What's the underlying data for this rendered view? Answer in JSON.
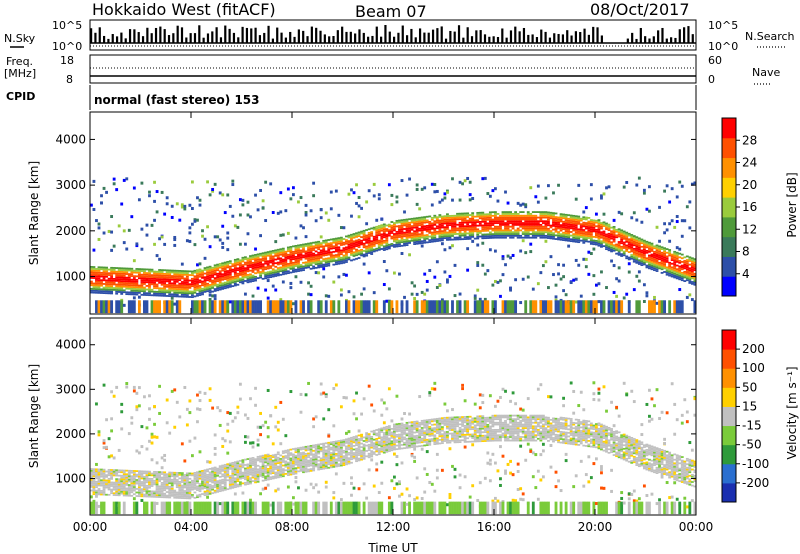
{
  "header": {
    "radar_title": "Hokkaido West (fitACF)",
    "beam": "Beam 07",
    "date": "08/Oct/2017"
  },
  "status_panels": {
    "nsky_label": "N.Sky",
    "nsearch_label": "N.Search",
    "noise_axis_top": "10^5",
    "noise_axis_bottom": "10^0",
    "freq_label": "Freq.",
    "freq_unit": "[MHz]",
    "freq_axis_top": "18",
    "freq_axis_bottom": "8",
    "nave_label": "Nave",
    "nave_axis_top": "60",
    "nave_axis_bottom": "0",
    "cpid_label": "CPID",
    "cpid_text": "normal (fast stereo) 153"
  },
  "chart_data": [
    {
      "type": "heatmap",
      "panel": "power",
      "xlabel": "",
      "ylabel": "Slant Range [km]",
      "x_ticks": [
        "00:00",
        "04:00",
        "08:00",
        "12:00",
        "16:00",
        "20:00",
        "00:00"
      ],
      "x_range_hours": [
        0,
        24
      ],
      "y_ticks": [
        1000,
        2000,
        3000,
        4000
      ],
      "y_range_km": [
        180,
        4600
      ],
      "colorbar": {
        "label": "Power [dB]",
        "ticks": [
          4,
          8,
          12,
          16,
          20,
          24,
          28
        ],
        "range": [
          0,
          32
        ],
        "colors": [
          "#0000ff",
          "#2d4fa8",
          "#3a7a5a",
          "#4f9a3a",
          "#9acb3c",
          "#ffd000",
          "#ff9000",
          "#ff5000",
          "#ff0000"
        ]
      },
      "echo_band_center_km": {
        "hours": [
          0,
          2,
          4,
          6,
          8,
          10,
          12,
          14,
          16,
          18,
          20,
          22,
          24
        ],
        "range": [
          950,
          900,
          850,
          1150,
          1400,
          1600,
          1950,
          2100,
          2150,
          2150,
          2000,
          1500,
          1100
        ]
      }
    },
    {
      "type": "heatmap",
      "panel": "velocity",
      "xlabel": "Time UT",
      "ylabel": "Slant Range [km]",
      "x_ticks": [
        "00:00",
        "04:00",
        "08:00",
        "12:00",
        "16:00",
        "20:00",
        "00:00"
      ],
      "x_range_hours": [
        0,
        24
      ],
      "y_ticks": [
        1000,
        2000,
        3000,
        4000
      ],
      "y_range_km": [
        180,
        4600
      ],
      "colorbar": {
        "label": "Velocity [m s⁻¹]",
        "ticks": [
          200,
          100,
          50,
          15,
          -15,
          -50,
          -100,
          -200
        ],
        "colors": [
          "#1a2fb0",
          "#2a6fd0",
          "#2e9a3a",
          "#7acb3a",
          "#c0c0c0",
          "#ffd000",
          "#ff9000",
          "#ff5000",
          "#ff0000"
        ]
      }
    }
  ],
  "colors": {
    "axis": "#000000",
    "ground_band": "#c0c0c0"
  }
}
